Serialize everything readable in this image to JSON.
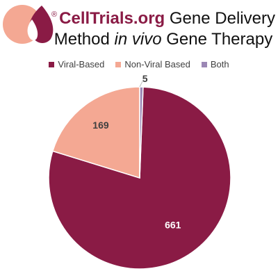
{
  "header": {
    "registered_mark": "®",
    "brand": "CellTrials.org",
    "title_rest": " Gene Delivery",
    "line2_pre": "Method ",
    "line2_italic": "in vivo",
    "line2_post": " Gene Therapy"
  },
  "colors": {
    "brand": "#8a1b45",
    "logo_pink": "#f4a893",
    "label_dark": "#404040"
  },
  "chart_data": {
    "type": "pie",
    "categories": [
      "Viral-Based",
      "Non-Viral Based",
      "Both"
    ],
    "values": [
      661,
      169,
      5
    ],
    "colors": [
      "#8a1b45",
      "#f4a893",
      "#9b87b5"
    ],
    "data_labels": [
      "661",
      "169",
      "5"
    ],
    "legend_position": "top"
  }
}
